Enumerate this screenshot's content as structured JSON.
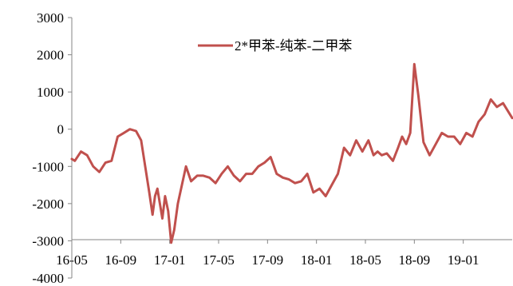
{
  "chart_data": {
    "type": "line",
    "title": "",
    "xlabel": "",
    "ylabel": "",
    "ylim": [
      -4000,
      3000
    ],
    "y_ticks": [
      "3000",
      "2000",
      "1000",
      "0",
      "-1000",
      "-2000",
      "-3000",
      "-4000"
    ],
    "x_tick_labels": [
      "16-05",
      "16-09",
      "17-01",
      "17-05",
      "17-09",
      "18-01",
      "18-05",
      "18-09",
      "19-01"
    ],
    "x_range": [
      "16-05",
      "19-05"
    ],
    "grid": false,
    "legend": {
      "position": "top-center",
      "entries": [
        "2*甲苯-纯苯-二甲苯"
      ]
    },
    "colors": {
      "series": "#c0504d",
      "axis": "#868686"
    },
    "series": [
      {
        "name": "2*甲苯-纯苯-二甲苯",
        "x": [
          "16-05",
          "16-05",
          "16-06",
          "16-06",
          "16-07",
          "16-07",
          "16-08",
          "16-08",
          "16-09",
          "16-09",
          "16-10",
          "16-10",
          "16-11",
          "16-11",
          "16-11",
          "16-12",
          "16-12",
          "16-12",
          "16-12",
          "16-12",
          "17-01",
          "17-01",
          "17-01",
          "17-01",
          "17-02",
          "17-02",
          "17-02",
          "17-03",
          "17-03",
          "17-04",
          "17-04",
          "17-05",
          "17-05",
          "17-06",
          "17-06",
          "17-07",
          "17-07",
          "17-08",
          "17-08",
          "17-09",
          "17-09",
          "17-10",
          "17-10",
          "17-11",
          "17-11",
          "17-12",
          "17-12",
          "18-01",
          "18-01",
          "18-02",
          "18-02",
          "18-03",
          "18-03",
          "18-04",
          "18-04",
          "18-05",
          "18-05",
          "18-06",
          "18-06",
          "18-06",
          "18-07",
          "18-07",
          "18-08",
          "18-08",
          "18-08",
          "18-09",
          "18-09",
          "18-09",
          "18-10",
          "18-10",
          "18-11",
          "18-11",
          "18-12",
          "18-12",
          "19-01",
          "19-01",
          "19-02",
          "19-02",
          "19-03",
          "19-03",
          "19-04",
          "19-04",
          "19-05"
        ],
        "y": [
          -800,
          -850,
          -600,
          -700,
          -1000,
          -1150,
          -900,
          -850,
          -200,
          -100,
          0,
          -50,
          -300,
          -1000,
          -1700,
          -2300,
          -1800,
          -1600,
          -2000,
          -2400,
          -1800,
          -2200,
          -3050,
          -2700,
          -2000,
          -1500,
          -1000,
          -1400,
          -1250,
          -1250,
          -1300,
          -1450,
          -1200,
          -1000,
          -1250,
          -1400,
          -1200,
          -1200,
          -1000,
          -900,
          -750,
          -1200,
          -1300,
          -1350,
          -1450,
          -1400,
          -1200,
          -1700,
          -1600,
          -1800,
          -1500,
          -1200,
          -500,
          -700,
          -300,
          -600,
          -300,
          -700,
          -600,
          -700,
          -650,
          -850,
          -500,
          -200,
          -400,
          -100,
          1750,
          900,
          -350,
          -700,
          -400,
          -100,
          -200,
          -200,
          -400,
          -100,
          -200,
          200,
          400,
          800,
          600,
          700,
          300
        ]
      }
    ]
  }
}
